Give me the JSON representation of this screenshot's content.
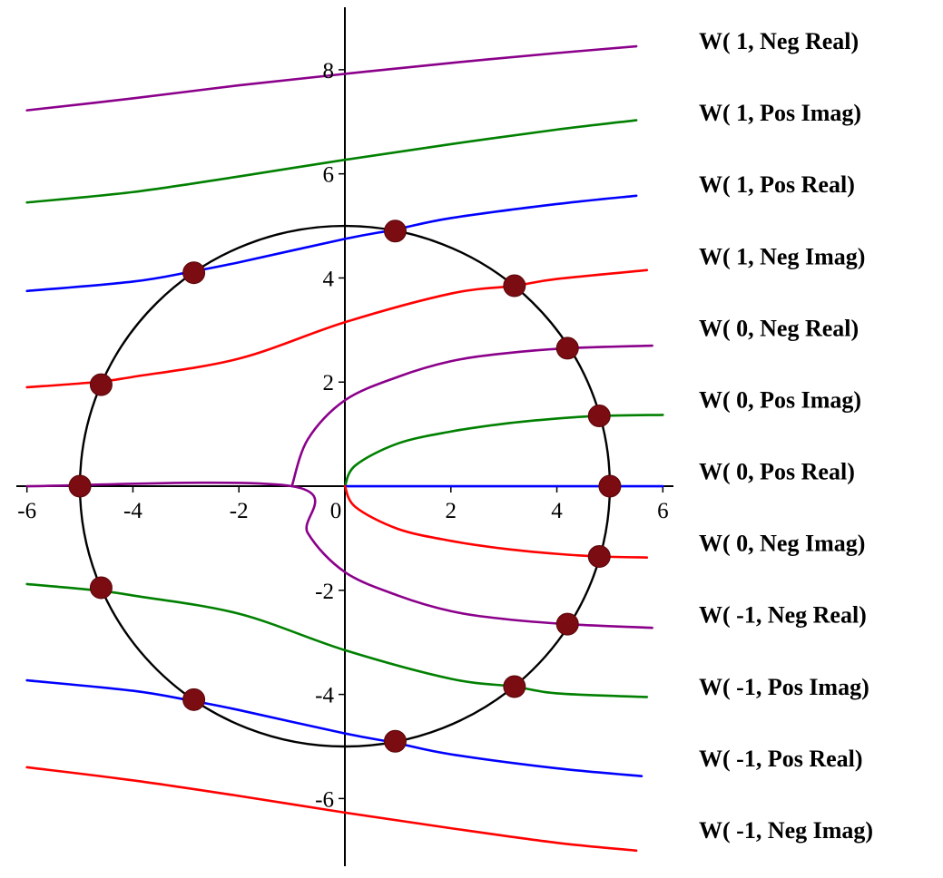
{
  "colors": {
    "purple": "#8b008b",
    "green": "#008000",
    "blue": "#0000ff",
    "red": "#ff0000",
    "circle": "#000000",
    "marker": "#7a0c12",
    "axis": "#000000"
  },
  "chart_data": {
    "type": "line",
    "title": "",
    "xlabel": "",
    "ylabel": "",
    "xlim": [
      -6.2,
      6.2
    ],
    "ylim": [
      -7.3,
      9.2
    ],
    "x_ticks": [
      -6,
      -4,
      -2,
      0,
      2,
      4,
      6
    ],
    "y_ticks": [
      -6,
      -4,
      -2,
      2,
      4,
      6,
      8
    ],
    "x_tick_labels": [
      "-6",
      "-4",
      "-2",
      "0",
      "2",
      "4",
      "6"
    ],
    "y_tick_labels": [
      "-6",
      "-4",
      "-2",
      "2",
      "4",
      "6",
      "8"
    ],
    "grid": false,
    "legend_placement": "right",
    "circle": {
      "center": [
        0,
        0
      ],
      "radius": 5,
      "color": "black"
    },
    "series": [
      {
        "name": "W( 1, Neg Real)",
        "color": "purple",
        "points": [
          [
            -6,
            7.22
          ],
          [
            -4,
            7.45
          ],
          [
            -2,
            7.7
          ],
          [
            0,
            7.92
          ],
          [
            2,
            8.13
          ],
          [
            4,
            8.32
          ],
          [
            5.5,
            8.45
          ]
        ]
      },
      {
        "name": "W( 1, Pos Imag)",
        "color": "green",
        "points": [
          [
            -6,
            5.45
          ],
          [
            -4,
            5.65
          ],
          [
            -2,
            5.95
          ],
          [
            0,
            6.27
          ],
          [
            2,
            6.57
          ],
          [
            4,
            6.85
          ],
          [
            5.5,
            7.03
          ]
        ]
      },
      {
        "name": "W( 1, Pos Real)",
        "color": "blue",
        "points": [
          [
            -6,
            3.75
          ],
          [
            -4,
            3.93
          ],
          [
            -2.9,
            4.12
          ],
          [
            -2,
            4.3
          ],
          [
            0,
            4.75
          ],
          [
            0.95,
            4.93
          ],
          [
            2,
            5.15
          ],
          [
            4,
            5.42
          ],
          [
            5.5,
            5.58
          ]
        ]
      },
      {
        "name": "W( 1, Neg Imag)",
        "color": "red",
        "points": [
          [
            -6,
            1.9
          ],
          [
            -4.7,
            2.0
          ],
          [
            -4,
            2.1
          ],
          [
            -2,
            2.45
          ],
          [
            0,
            3.15
          ],
          [
            2,
            3.7
          ],
          [
            3.2,
            3.85
          ],
          [
            4,
            3.98
          ],
          [
            5.7,
            4.15
          ]
        ]
      },
      {
        "name": "W( 0, Neg Real)",
        "color": "purple",
        "points": [
          [
            -1,
            0
          ],
          [
            -0.7,
            0.9
          ],
          [
            0,
            1.65
          ],
          [
            1,
            2.1
          ],
          [
            2,
            2.4
          ],
          [
            3,
            2.55
          ],
          [
            4.2,
            2.65
          ],
          [
            5.8,
            2.7
          ]
        ]
      },
      {
        "name": "W( 0, Pos Imag)",
        "color": "green",
        "points": [
          [
            0,
            0
          ],
          [
            0.2,
            0.4
          ],
          [
            1,
            0.82
          ],
          [
            2,
            1.05
          ],
          [
            3,
            1.2
          ],
          [
            4,
            1.3
          ],
          [
            4.8,
            1.35
          ],
          [
            6,
            1.37
          ]
        ]
      },
      {
        "name": "W( 0, Pos Real)",
        "color": "blue",
        "points": [
          [
            0,
            0
          ],
          [
            6,
            0
          ]
        ]
      },
      {
        "name": "W( 0, Neg Imag)",
        "color": "red",
        "points": [
          [
            0,
            0
          ],
          [
            0.2,
            -0.4
          ],
          [
            1,
            -0.82
          ],
          [
            2,
            -1.05
          ],
          [
            3,
            -1.2
          ],
          [
            4,
            -1.3
          ],
          [
            4.8,
            -1.35
          ],
          [
            5.7,
            -1.37
          ]
        ]
      },
      {
        "name": "W( -1, Neg Real)",
        "color": "purple",
        "points": [
          [
            -6,
            0
          ],
          [
            -1,
            0
          ],
          [
            -0.7,
            -0.9
          ],
          [
            0,
            -1.65
          ],
          [
            1,
            -2.1
          ],
          [
            2,
            -2.4
          ],
          [
            3,
            -2.55
          ],
          [
            4.2,
            -2.65
          ],
          [
            5.8,
            -2.72
          ]
        ]
      },
      {
        "name": "W( -1, Pos Imag)",
        "color": "green",
        "points": [
          [
            -6,
            -1.88
          ],
          [
            -4.7,
            -2.0
          ],
          [
            -4,
            -2.1
          ],
          [
            -2,
            -2.45
          ],
          [
            0,
            -3.15
          ],
          [
            2,
            -3.7
          ],
          [
            3.2,
            -3.85
          ],
          [
            4,
            -3.98
          ],
          [
            5.7,
            -4.05
          ]
        ]
      },
      {
        "name": "W( -1, Pos Real)",
        "color": "blue",
        "points": [
          [
            -6,
            -3.73
          ],
          [
            -4,
            -3.93
          ],
          [
            -2.9,
            -4.12
          ],
          [
            -2,
            -4.3
          ],
          [
            0,
            -4.75
          ],
          [
            0.95,
            -4.93
          ],
          [
            2,
            -5.15
          ],
          [
            4,
            -5.42
          ],
          [
            5.6,
            -5.57
          ]
        ]
      },
      {
        "name": "W( -1, Neg Imag)",
        "color": "red",
        "points": [
          [
            -6,
            -5.4
          ],
          [
            -4,
            -5.65
          ],
          [
            -2,
            -5.95
          ],
          [
            0,
            -6.27
          ],
          [
            2,
            -6.57
          ],
          [
            4,
            -6.85
          ],
          [
            5.5,
            -7.0
          ]
        ]
      }
    ],
    "markers": [
      [
        0.95,
        4.9
      ],
      [
        3.2,
        3.85
      ],
      [
        4.2,
        2.65
      ],
      [
        4.8,
        1.35
      ],
      [
        5.0,
        0
      ],
      [
        4.8,
        -1.35
      ],
      [
        4.2,
        -2.65
      ],
      [
        3.2,
        -3.85
      ],
      [
        0.95,
        -4.9
      ],
      [
        -2.85,
        -4.1
      ],
      [
        -4.6,
        -1.95
      ],
      [
        -5.0,
        0
      ],
      [
        -4.6,
        1.95
      ],
      [
        -2.85,
        4.1
      ]
    ]
  }
}
